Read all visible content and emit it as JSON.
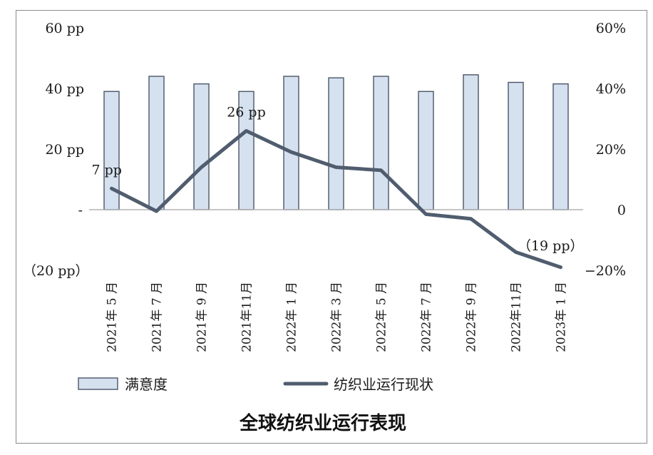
{
  "chart_data": {
    "type": "bar+line",
    "title": "全球纺织业运行表现",
    "categories": [
      "2021年 5 月",
      "2021年 7 月",
      "2021年 9 月",
      "2021年11月",
      "2022年 1 月",
      "2022年 3 月",
      "2022年 5 月",
      "2022年 7 月",
      "2022年 9 月",
      "2022年11月",
      "2023年 1 月"
    ],
    "series": [
      {
        "name": "满意度",
        "type": "bar",
        "axis": "right",
        "values": [
          39,
          44,
          41.5,
          39,
          44,
          43.5,
          44,
          39,
          44.5,
          42,
          41.5
        ]
      },
      {
        "name": "纺织业运行现状",
        "type": "line",
        "axis": "left",
        "values": [
          7,
          -0.5,
          14,
          26,
          19,
          14,
          13,
          -1.5,
          -3,
          -14,
          -19
        ]
      }
    ],
    "data_labels": [
      {
        "index": 0,
        "text": "7 pp"
      },
      {
        "index": 3,
        "text": "26 pp"
      },
      {
        "index": 10,
        "text": "（19 pp）"
      }
    ],
    "left_axis": {
      "ylim": [
        -20,
        60
      ],
      "ticks": [
        "（20 pp）",
        "-",
        "20 pp",
        "40 pp",
        "60 pp"
      ]
    },
    "right_axis": {
      "ylim": [
        -20,
        60
      ],
      "ticks": [
        "−20%",
        "0",
        "20%",
        "40%",
        "60%"
      ]
    },
    "colors": {
      "bar_fill": "#d5e1ef",
      "bar_stroke": "#4a5568",
      "line": "#505d6e",
      "zero_line": "#b3b3b3"
    },
    "legend_position": "bottom"
  }
}
